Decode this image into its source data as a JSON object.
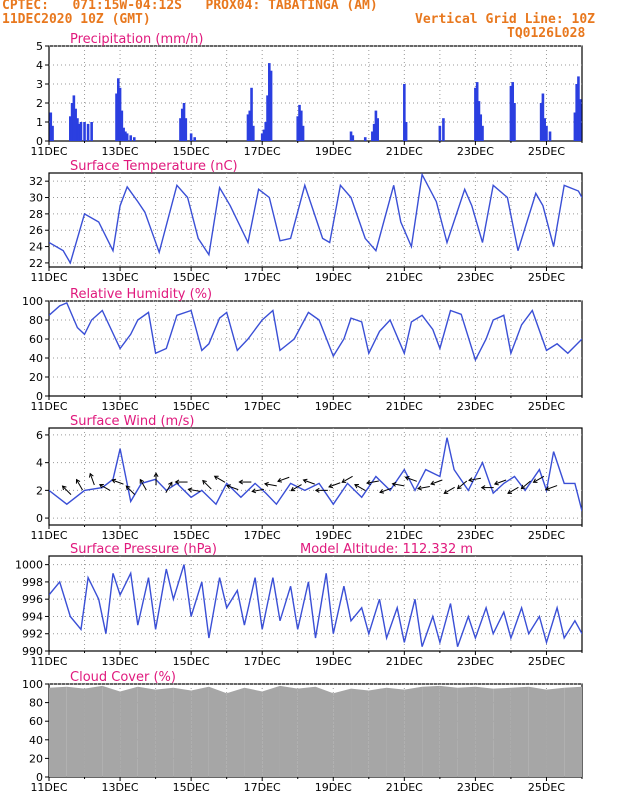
{
  "header": {
    "line1": "CPTEC:   071:15W-04:12S   PROX04: TABATINGA (AM)",
    "line2_left": "11DEC2020 10Z (GMT)",
    "line2_right": "Vertical Grid Line: 10Z",
    "line3_right": "TQ0126L028"
  },
  "colors": {
    "header_text": "#e8781e",
    "title_text": "#e0197d",
    "series_line": "#3a4fd6",
    "precip_bar": "#2b3fe0",
    "cloud_fill": "#a6a6a6",
    "wind_arrow": "#000000"
  },
  "x_axis": {
    "tick_labels": [
      "11DEC",
      "13DEC",
      "15DEC",
      "17DEC",
      "19DEC",
      "21DEC",
      "23DEC",
      "25DEC"
    ],
    "tick_days": [
      0,
      2,
      4,
      6,
      8,
      10,
      12,
      14
    ],
    "range_days": [
      0,
      15
    ]
  },
  "chart_data": [
    {
      "type": "bar",
      "title": "Precipitation (mm/h)",
      "ylim": [
        0,
        5
      ],
      "yticks": [
        0,
        1,
        2,
        3,
        4,
        5
      ],
      "grid": true,
      "x_days": [
        0.05,
        0.1,
        0.6,
        0.65,
        0.7,
        0.75,
        0.8,
        0.85,
        0.9,
        1.0,
        1.1,
        1.2,
        1.9,
        1.95,
        2.0,
        2.05,
        2.1,
        2.15,
        2.2,
        2.3,
        2.4,
        3.7,
        3.75,
        3.8,
        3.85,
        4.0,
        4.1,
        5.6,
        5.65,
        5.7,
        5.75,
        6.0,
        6.05,
        6.1,
        6.15,
        6.2,
        6.25,
        7.0,
        7.05,
        7.1,
        7.15,
        8.5,
        8.55,
        8.9,
        9.1,
        9.15,
        9.2,
        9.25,
        10.0,
        10.05,
        11.0,
        11.1,
        12.0,
        12.05,
        12.1,
        12.15,
        12.2,
        13.0,
        13.05,
        13.1,
        13.85,
        13.9,
        13.95,
        14.0,
        14.1,
        14.8,
        14.85,
        14.9,
        14.95
      ],
      "values": [
        1.5,
        0.8,
        1.3,
        2.0,
        2.4,
        1.7,
        1.2,
        0.9,
        1.0,
        1.0,
        0.9,
        1.0,
        2.5,
        3.3,
        2.8,
        1.6,
        0.7,
        0.5,
        0.4,
        0.3,
        0.2,
        1.2,
        1.7,
        2.0,
        1.2,
        0.4,
        0.2,
        1.4,
        1.6,
        2.8,
        0.8,
        0.4,
        0.6,
        1.0,
        2.4,
        4.1,
        3.7,
        1.3,
        1.9,
        1.6,
        0.8,
        0.5,
        0.3,
        0.2,
        0.5,
        0.9,
        1.6,
        1.2,
        3.0,
        1.0,
        0.8,
        1.2,
        2.8,
        3.1,
        2.1,
        1.4,
        0.8,
        2.9,
        3.1,
        2.0,
        2.0,
        2.5,
        1.2,
        0.8,
        0.5,
        1.5,
        3.0,
        3.4,
        2.2
      ]
    },
    {
      "type": "line",
      "title": "Surface Temperature (nC)",
      "ylim": [
        21.5,
        33
      ],
      "yticks": [
        22,
        24,
        26,
        28,
        30,
        32
      ],
      "grid": true,
      "x_days": [
        0,
        0.4,
        0.6,
        1.0,
        1.4,
        1.8,
        2.0,
        2.2,
        2.5,
        2.7,
        3.1,
        3.6,
        3.9,
        4.2,
        4.5,
        4.8,
        5.1,
        5.6,
        5.9,
        6.2,
        6.5,
        6.8,
        7.2,
        7.7,
        7.9,
        8.2,
        8.5,
        8.9,
        9.2,
        9.7,
        9.9,
        10.2,
        10.5,
        10.9,
        11.2,
        11.7,
        11.9,
        12.2,
        12.5,
        12.9,
        13.2,
        13.7,
        13.9,
        14.2,
        14.5,
        14.9,
        15.0
      ],
      "values": [
        24.5,
        23.5,
        22.0,
        28.0,
        27.0,
        23.5,
        29.0,
        31.3,
        29.5,
        28.2,
        23.3,
        31.5,
        30.0,
        25.0,
        23.0,
        31.2,
        29.0,
        24.5,
        31.0,
        30.0,
        24.7,
        25.0,
        31.5,
        25.0,
        24.5,
        31.5,
        30.0,
        25.0,
        23.5,
        31.5,
        27.0,
        24.0,
        32.8,
        29.5,
        24.5,
        31.0,
        29.0,
        24.5,
        31.5,
        30.0,
        23.5,
        30.5,
        29.0,
        24.0,
        31.5,
        30.8,
        30.0
      ]
    },
    {
      "type": "line",
      "title": "Relative Humidity (%)",
      "ylim": [
        0,
        100
      ],
      "yticks": [
        0,
        20,
        40,
        60,
        80,
        100
      ],
      "grid": true,
      "x_days": [
        0,
        0.3,
        0.5,
        0.8,
        1.0,
        1.2,
        1.5,
        2.0,
        2.3,
        2.5,
        2.8,
        3.0,
        3.3,
        3.6,
        4.0,
        4.3,
        4.5,
        4.8,
        5.0,
        5.3,
        5.6,
        6.0,
        6.3,
        6.5,
        6.9,
        7.3,
        7.6,
        8.0,
        8.3,
        8.5,
        8.8,
        9.0,
        9.3,
        9.6,
        10.0,
        10.2,
        10.5,
        10.8,
        11.0,
        11.3,
        11.6,
        12.0,
        12.3,
        12.5,
        12.8,
        13.0,
        13.3,
        13.6,
        14.0,
        14.3,
        14.6,
        15.0
      ],
      "values": [
        85,
        95,
        98,
        72,
        65,
        80,
        90,
        50,
        65,
        80,
        88,
        45,
        50,
        85,
        90,
        48,
        55,
        82,
        88,
        48,
        60,
        80,
        90,
        48,
        60,
        88,
        80,
        42,
        60,
        82,
        78,
        45,
        68,
        80,
        45,
        78,
        85,
        70,
        50,
        90,
        86,
        38,
        60,
        80,
        85,
        45,
        75,
        90,
        48,
        55,
        45,
        60
      ]
    },
    {
      "type": "line",
      "title": "Surface Wind (m/s)",
      "ylim": [
        -0.5,
        6.5
      ],
      "yticks": [
        0,
        2,
        4,
        6
      ],
      "grid": true,
      "x_days": [
        0,
        0.5,
        1.0,
        1.5,
        1.8,
        2.0,
        2.3,
        2.6,
        3.0,
        3.3,
        3.6,
        4.0,
        4.3,
        4.7,
        5.0,
        5.4,
        5.8,
        6.1,
        6.4,
        6.8,
        7.2,
        7.6,
        8.0,
        8.4,
        8.8,
        9.2,
        9.6,
        10.0,
        10.3,
        10.6,
        11.0,
        11.2,
        11.4,
        11.8,
        12.2,
        12.5,
        12.8,
        13.1,
        13.4,
        13.8,
        14.0,
        14.2,
        14.5,
        14.8,
        15.0
      ],
      "values": [
        2.0,
        1.0,
        2.0,
        2.2,
        2.8,
        5.0,
        1.2,
        2.5,
        2.8,
        2.0,
        2.5,
        1.5,
        2.0,
        1.0,
        2.5,
        1.5,
        2.5,
        1.8,
        1.0,
        2.5,
        2.0,
        2.5,
        1.0,
        2.5,
        1.5,
        3.0,
        2.0,
        3.5,
        2.0,
        3.5,
        3.0,
        5.8,
        3.5,
        2.0,
        4.0,
        1.8,
        2.5,
        3.0,
        2.0,
        3.5,
        2.0,
        4.8,
        2.5,
        2.5,
        0.5
      ],
      "arrow_dir_deg": [
        225,
        240,
        250,
        210,
        200,
        225,
        240,
        270,
        300,
        180,
        190,
        225,
        210,
        200,
        180,
        170,
        190,
        160,
        150,
        200,
        180,
        160,
        150,
        210,
        170,
        160,
        190,
        200,
        170,
        160,
        150,
        140,
        170,
        180,
        160,
        150,
        140,
        150,
        160
      ]
    },
    {
      "type": "line",
      "title": "Surface Pressure (hPa)",
      "annotation": "Model Altitude: 112.332  m",
      "ylim": [
        990,
        1001
      ],
      "yticks": [
        990,
        992,
        994,
        996,
        998,
        1000
      ],
      "grid": true,
      "x_days": [
        0,
        0.3,
        0.6,
        0.9,
        1.1,
        1.4,
        1.6,
        1.8,
        2.0,
        2.3,
        2.5,
        2.8,
        3.0,
        3.3,
        3.5,
        3.8,
        4.0,
        4.3,
        4.5,
        4.8,
        5.0,
        5.3,
        5.5,
        5.8,
        6.0,
        6.3,
        6.5,
        6.8,
        7.0,
        7.3,
        7.5,
        7.8,
        8.0,
        8.3,
        8.5,
        8.8,
        9.0,
        9.3,
        9.5,
        9.8,
        10.0,
        10.3,
        10.5,
        10.8,
        11.0,
        11.3,
        11.5,
        11.8,
        12.0,
        12.3,
        12.5,
        12.8,
        13.0,
        13.3,
        13.5,
        13.8,
        14.0,
        14.3,
        14.5,
        14.8,
        15.0
      ],
      "values": [
        996.5,
        998.0,
        994.0,
        992.5,
        998.5,
        996.0,
        992.0,
        999.0,
        996.5,
        999.0,
        993.0,
        998.5,
        992.5,
        999.5,
        996.0,
        1000.0,
        994.0,
        998.0,
        991.5,
        998.5,
        995.0,
        997.0,
        993.0,
        998.5,
        992.5,
        998.5,
        993.5,
        997.5,
        992.5,
        998.0,
        991.5,
        999.0,
        992.0,
        997.5,
        993.5,
        995.0,
        992.0,
        996.0,
        991.5,
        995.0,
        991.0,
        996.0,
        990.5,
        994.0,
        991.0,
        995.5,
        990.5,
        994.0,
        991.5,
        995.0,
        992.0,
        994.5,
        991.5,
        995.0,
        992.0,
        994.0,
        991.0,
        995.0,
        991.5,
        993.5,
        992.0
      ]
    },
    {
      "type": "area",
      "title": "Cloud Cover (%)",
      "ylim": [
        0,
        100
      ],
      "yticks": [
        0,
        20,
        40,
        60,
        80,
        100
      ],
      "grid": true,
      "x_days": [
        0,
        0.5,
        1.0,
        1.5,
        2.0,
        2.5,
        3.0,
        3.5,
        4.0,
        4.5,
        5.0,
        5.5,
        6.0,
        6.5,
        7.0,
        7.5,
        8.0,
        8.5,
        9.0,
        9.5,
        10.0,
        10.5,
        11.0,
        11.5,
        12.0,
        12.5,
        13.0,
        13.5,
        14.0,
        14.5,
        15.0
      ],
      "values": [
        96,
        97,
        95,
        98,
        92,
        97,
        94,
        96,
        93,
        97,
        90,
        96,
        92,
        98,
        95,
        97,
        90,
        95,
        93,
        96,
        94,
        97,
        98,
        96,
        97,
        95,
        96,
        97,
        94,
        96,
        97
      ]
    }
  ]
}
